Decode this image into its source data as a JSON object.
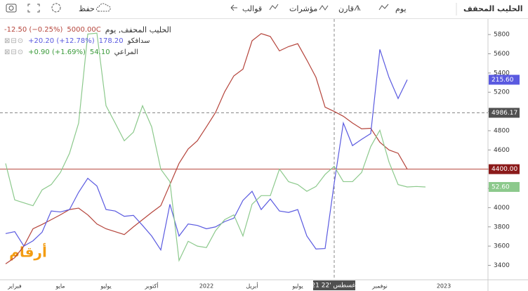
{
  "toolbar": {
    "title": "الحليب المحفف",
    "interval": "يوم",
    "compare": "قارن",
    "indicators": "مؤشرات",
    "templates": "قوالب",
    "save": "حفظ"
  },
  "watermark": "أرقام",
  "chart_data": {
    "type": "line",
    "legend_header": "الحليب المحفف, يوم",
    "categories": [
      null,
      "فبراير",
      null,
      null,
      null,
      null,
      "مايو",
      null,
      null,
      null,
      null,
      "يوليو",
      null,
      null,
      null,
      null,
      "أكتوبر",
      null,
      null,
      null,
      null,
      null,
      "2022",
      null,
      null,
      null,
      null,
      "أبريل",
      null,
      null,
      null,
      null,
      "يوليو",
      null,
      null,
      null,
      null,
      null,
      null,
      null,
      null,
      "نوفمبر",
      null,
      null,
      null,
      null,
      null,
      null,
      "2023"
    ],
    "series": [
      {
        "name": "الحليب المحفف",
        "color": "#b5443b",
        "legend_value": "5000.00C",
        "legend_change": "-12.50 (−0.25%)",
        "price_tag": "4400.00",
        "values": [
          3415,
          3480,
          3600,
          3780,
          3825,
          3875,
          3925,
          3980,
          3995,
          3925,
          3830,
          3780,
          3750,
          3720,
          3800,
          3875,
          3950,
          4020,
          4240,
          4460,
          4610,
          4695,
          4840,
          4990,
          5205,
          5370,
          5440,
          5735,
          5810,
          5780,
          5630,
          5675,
          5705,
          5535,
          5355,
          5045,
          5000,
          4950,
          4880,
          4820,
          4825,
          4680,
          4600,
          4565,
          4400,
          null,
          null,
          null,
          null
        ]
      },
      {
        "name": "سدافكو",
        "color": "#5a5ae0",
        "legend_value": "178.20",
        "legend_change": "+20.20 (+12.78%)",
        "price_tag": "215.60",
        "values": [
          3730,
          3750,
          3600,
          3655,
          3745,
          3965,
          3955,
          3980,
          4160,
          4305,
          4225,
          3980,
          3965,
          3910,
          3920,
          3815,
          3705,
          3560,
          4035,
          3705,
          3830,
          3815,
          3780,
          3800,
          3855,
          3890,
          4075,
          4170,
          3980,
          4090,
          3965,
          3950,
          3980,
          3705,
          3570,
          3575,
          4255,
          4880,
          4645,
          4710,
          4770,
          5645,
          5355,
          5135,
          5330,
          null,
          null,
          null,
          null
        ]
      },
      {
        "name": "المراعي",
        "color": "#8cc98c",
        "legend_value": "54.10",
        "legend_change": "+0.90 (+1.69%)",
        "price_tag": "52.60",
        "values": [
          4460,
          4080,
          4050,
          4020,
          4185,
          4240,
          4365,
          4565,
          4880,
          5805,
          5815,
          5060,
          4880,
          4695,
          4785,
          5060,
          4840,
          4400,
          4270,
          3450,
          3650,
          3600,
          3585,
          3760,
          3875,
          3925,
          3705,
          4035,
          4125,
          4125,
          4400,
          4270,
          4240,
          4170,
          4220,
          4345,
          4430,
          4270,
          4270,
          4365,
          4635,
          4805,
          4475,
          4240,
          4215,
          4220,
          4215,
          null,
          null
        ]
      }
    ],
    "ylim": [
      3250,
      5940
    ],
    "yticks": [
      3400,
      3600,
      3800,
      4000,
      4200,
      4400,
      4600,
      4800,
      5000,
      5200,
      5400,
      5600,
      5800
    ],
    "crosshair": {
      "x_label": "21 أغسطس '22",
      "y": 4986.17
    }
  }
}
